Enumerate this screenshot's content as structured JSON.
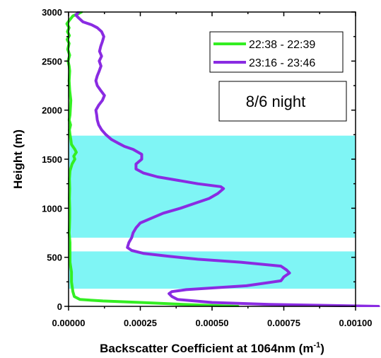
{
  "chart_data": {
    "type": "line",
    "title": "",
    "xlabel": "Backscatter Coefficient at 1064nm (m",
    "xlabel_sup": "-1",
    "xlabel_end": ")",
    "ylabel": "Height (m)",
    "xlim": [
      0,
      0.001
    ],
    "ylim": [
      0,
      3000
    ],
    "x_ticks": [
      0,
      0.00025,
      0.0005,
      0.00075,
      0.001
    ],
    "x_tick_labels": [
      "0.00000",
      "0.00025",
      "0.00050",
      "0.00075",
      "0.00100"
    ],
    "y_ticks": [
      0,
      500,
      1000,
      1500,
      2000,
      2500,
      3000
    ],
    "y_tick_labels": [
      "0",
      "500",
      "1000",
      "1500",
      "2000",
      "2500",
      "3000"
    ],
    "grid": false,
    "legend_position": "top-right",
    "annotation": "8/6 night",
    "shaded_bands": [
      {
        "y_from": 180,
        "y_to": 560,
        "color": "#7ff5f5"
      },
      {
        "y_from": 700,
        "y_to": 1740,
        "color": "#7ff5f5"
      }
    ],
    "series": [
      {
        "name": "22:38 - 22:39",
        "color": "#33ee22",
        "points": [
          [
            0.00059,
            0
          ],
          [
            0.0004,
            20
          ],
          [
            0.00025,
            40
          ],
          [
            0.00012,
            55
          ],
          [
            4e-05,
            70
          ],
          [
            2e-05,
            100
          ],
          [
            1.5e-05,
            150
          ],
          [
            1e-05,
            250
          ],
          [
            1e-05,
            350
          ],
          [
            5e-06,
            450
          ],
          [
            5e-06,
            550
          ],
          [
            5e-06,
            650
          ],
          [
            2e-06,
            750
          ],
          [
            3e-06,
            800
          ],
          [
            4e-06,
            900
          ],
          [
            4e-06,
            1000
          ],
          [
            3e-06,
            1100
          ],
          [
            4e-06,
            1200
          ],
          [
            3e-06,
            1300
          ],
          [
            5e-06,
            1380
          ],
          [
            1.2e-05,
            1450
          ],
          [
            2.2e-05,
            1500
          ],
          [
            1.8e-05,
            1530
          ],
          [
            2.7e-05,
            1570
          ],
          [
            2.2e-05,
            1600
          ],
          [
            1e-05,
            1650
          ],
          [
            8e-06,
            1700
          ],
          [
            5e-06,
            1750
          ],
          [
            3e-06,
            1800
          ],
          [
            7e-06,
            1850
          ],
          [
            2e-06,
            1900
          ],
          [
            5e-06,
            1950
          ],
          [
            6e-06,
            2000
          ],
          [
            8e-06,
            2100
          ],
          [
            4e-06,
            2200
          ],
          [
            2e-06,
            2300
          ],
          [
            4e-06,
            2400
          ],
          [
            2e-06,
            2450
          ],
          [
            -2e-06,
            2500
          ],
          [
            4e-06,
            2560
          ],
          [
            -3e-06,
            2620
          ],
          [
            2e-06,
            2680
          ],
          [
            -5e-06,
            2720
          ],
          [
            3e-06,
            2760
          ],
          [
            -4e-06,
            2800
          ],
          [
            2e-06,
            2840
          ],
          [
            -6e-06,
            2880
          ],
          [
            4e-06,
            2920
          ],
          [
            1.5e-05,
            2960
          ],
          [
            3.5e-05,
            2985
          ],
          [
            4.5e-05,
            3000
          ]
        ]
      },
      {
        "name": "23:16 - 23:46",
        "color": "#8a2be2",
        "points": [
          [
            0.00108,
            0
          ],
          [
            0.0007,
            20
          ],
          [
            0.0005,
            40
          ],
          [
            0.00038,
            70
          ],
          [
            0.00036,
            100
          ],
          [
            0.00035,
            130
          ],
          [
            0.00036,
            150
          ],
          [
            0.00041,
            170
          ],
          [
            0.00062,
            210
          ],
          [
            0.00074,
            260
          ],
          [
            0.00075,
            300
          ],
          [
            0.00077,
            340
          ],
          [
            0.00076,
            370
          ],
          [
            0.00074,
            410
          ],
          [
            0.0006,
            450
          ],
          [
            0.00045,
            480
          ],
          [
            0.00035,
            510
          ],
          [
            0.00026,
            540
          ],
          [
            0.00022,
            570
          ],
          [
            0.000205,
            600
          ],
          [
            0.00021,
            650
          ],
          [
            0.00022,
            700
          ],
          [
            0.000225,
            750
          ],
          [
            0.000235,
            800
          ],
          [
            0.00025,
            850
          ],
          [
            0.00029,
            900
          ],
          [
            0.00033,
            950
          ],
          [
            0.00039,
            1000
          ],
          [
            0.00044,
            1050
          ],
          [
            0.00049,
            1100
          ],
          [
            0.00052,
            1150
          ],
          [
            0.00054,
            1200
          ],
          [
            0.00053,
            1220
          ],
          [
            0.00045,
            1250
          ],
          [
            0.00037,
            1290
          ],
          [
            0.00031,
            1320
          ],
          [
            0.00026,
            1360
          ],
          [
            0.000235,
            1400
          ],
          [
            0.000235,
            1450
          ],
          [
            0.000255,
            1500
          ],
          [
            0.000255,
            1550
          ],
          [
            0.000225,
            1600
          ],
          [
            0.000195,
            1630
          ],
          [
            0.000175,
            1660
          ],
          [
            0.00015,
            1700
          ],
          [
            0.00013,
            1750
          ],
          [
            0.000115,
            1800
          ],
          [
            0.000105,
            1850
          ],
          [
            0.0001,
            1900
          ],
          [
            9.8e-05,
            1950
          ],
          [
            9.5e-05,
            2000
          ],
          [
            0.000105,
            2050
          ],
          [
            0.000118,
            2100
          ],
          [
            0.000125,
            2150
          ],
          [
            0.000112,
            2200
          ],
          [
            0.0001,
            2250
          ],
          [
            9.5e-05,
            2300
          ],
          [
            0.0001,
            2350
          ],
          [
            0.000107,
            2400
          ],
          [
            0.000113,
            2450
          ],
          [
            0.000107,
            2500
          ],
          [
            0.000115,
            2550
          ],
          [
            0.000108,
            2600
          ],
          [
            0.000112,
            2650
          ],
          [
            0.000118,
            2700
          ],
          [
            0.000123,
            2750
          ],
          [
            0.000115,
            2800
          ],
          [
            0.0001,
            2840
          ],
          [
            8e-05,
            2870
          ],
          [
            5e-05,
            2900
          ],
          [
            3.5e-05,
            2940
          ],
          [
            2.5e-05,
            2970
          ],
          [
            3.5e-05,
            3000
          ]
        ]
      }
    ]
  }
}
